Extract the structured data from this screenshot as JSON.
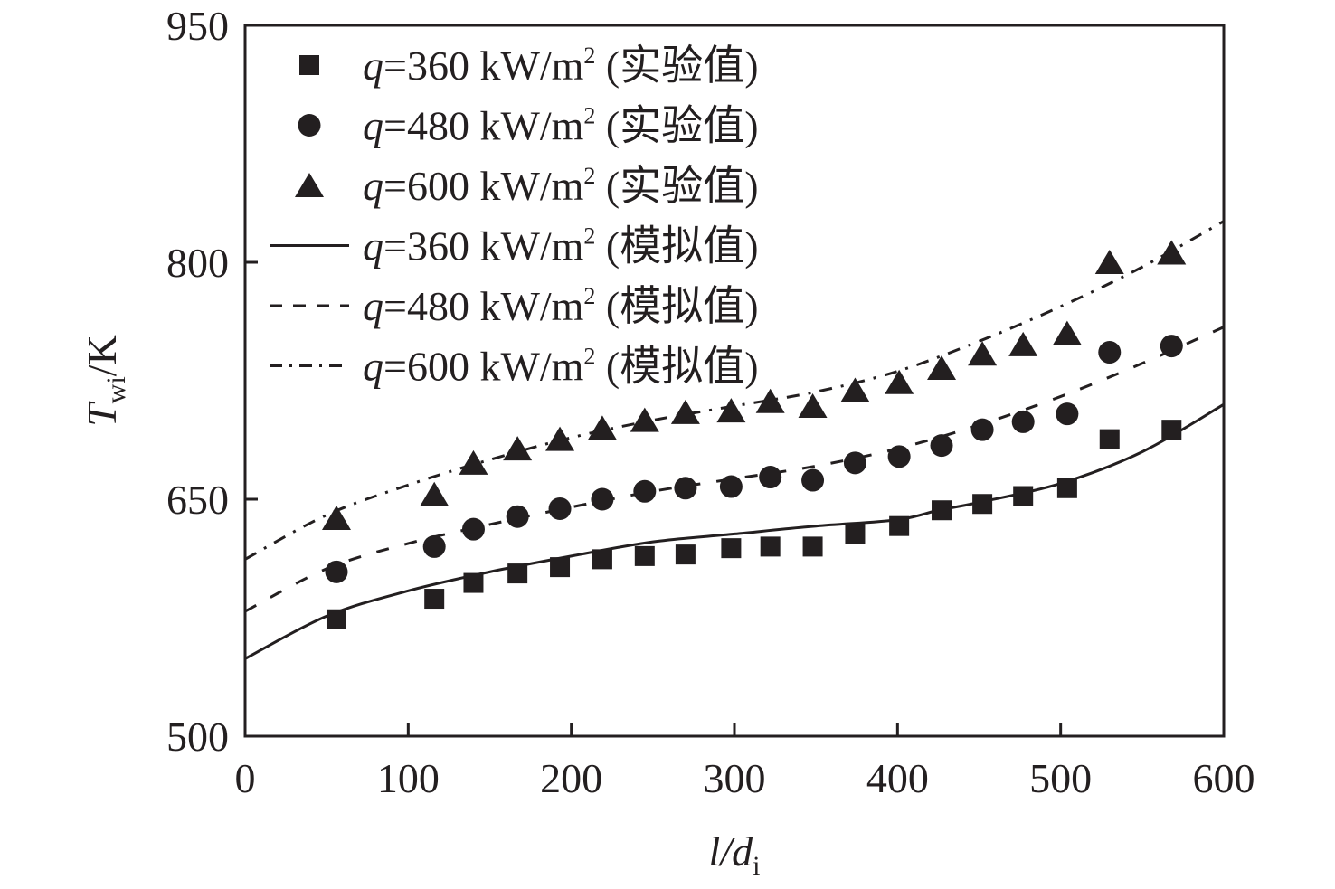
{
  "chart_data": {
    "type": "scatter",
    "title": "",
    "xlabel": {
      "main": "l/d",
      "subscript": "i"
    },
    "ylabel": {
      "main": "T",
      "subscript": "wi",
      "unit": "/K"
    },
    "xlim": [
      0,
      600
    ],
    "ylim": [
      500,
      950
    ],
    "xticks": [
      0,
      100,
      200,
      300,
      400,
      500,
      600
    ],
    "yticks": [
      500,
      650,
      800,
      950
    ],
    "grid": false,
    "legend_position": "top-left",
    "series": [
      {
        "name": "q=360 kW/m2 (实验值)",
        "legend": {
          "q": "q",
          "rest": "=360 kW/m",
          "sup": "2",
          "tail": " (实验值)"
        },
        "kind": "scatter",
        "marker": "square",
        "color": "#231f20",
        "x": [
          56,
          116,
          140,
          167,
          193,
          219,
          245,
          270,
          298,
          322,
          348,
          374,
          401,
          427,
          452,
          477,
          504,
          530,
          568
        ],
        "y": [
          574,
          587,
          597,
          603,
          607,
          612,
          614,
          615,
          619,
          620,
          620,
          628,
          633,
          643,
          647,
          652,
          657,
          688,
          694
        ]
      },
      {
        "name": "q=480 kW/m2 (实验值)",
        "legend": {
          "q": "q",
          "rest": "=480 kW/m",
          "sup": "2",
          "tail": " (实验值)"
        },
        "kind": "scatter",
        "marker": "circle",
        "color": "#231f20",
        "x": [
          56,
          116,
          140,
          167,
          193,
          219,
          245,
          270,
          298,
          322,
          348,
          374,
          401,
          427,
          452,
          477,
          504,
          530,
          568
        ],
        "y": [
          604,
          620,
          631,
          639,
          644,
          650,
          655,
          657,
          658,
          664,
          662,
          673,
          677,
          684,
          694,
          699,
          704,
          743,
          747
        ]
      },
      {
        "name": "q=600 kW/m2 (实验值)",
        "legend": {
          "q": "q",
          "rest": "=600 kW/m",
          "sup": "2",
          "tail": " (实验值)"
        },
        "kind": "scatter",
        "marker": "triangle",
        "color": "#231f20",
        "x": [
          56,
          116,
          140,
          167,
          193,
          219,
          245,
          270,
          298,
          322,
          348,
          374,
          401,
          427,
          452,
          477,
          504,
          530,
          568
        ],
        "y": [
          638,
          653,
          673,
          682,
          688,
          695,
          700,
          705,
          706,
          712,
          709,
          719,
          724,
          733,
          742,
          748,
          755,
          800,
          806
        ]
      },
      {
        "name": "q=360 kW/m2 (模拟值)",
        "legend": {
          "q": "q",
          "rest": "=360 kW/m",
          "sup": "2",
          "tail": " (模拟值)"
        },
        "kind": "line",
        "line_style": "solid",
        "color": "#231f20",
        "x": [
          0,
          50,
          100,
          150,
          200,
          250,
          300,
          350,
          400,
          425,
          450,
          500,
          550,
          600
        ],
        "y": [
          549,
          576,
          592,
          604,
          614,
          623,
          628,
          633,
          637,
          643,
          648,
          660,
          680,
          710
        ]
      },
      {
        "name": "q=480 kW/m2 (模拟值)",
        "legend": {
          "q": "q",
          "rest": "=480 kW/m",
          "sup": "2",
          "tail": " (模拟值)"
        },
        "kind": "line",
        "line_style": "dashed",
        "color": "#231f20",
        "x": [
          0,
          50,
          100,
          150,
          200,
          250,
          300,
          350,
          400,
          450,
          500,
          550,
          600
        ],
        "y": [
          579,
          606,
          622,
          634,
          645,
          655,
          663,
          671,
          682,
          697,
          715,
          736,
          759
        ]
      },
      {
        "name": "q=600 kW/m2 (模拟值)",
        "legend": {
          "q": "q",
          "rest": "=600 kW/m",
          "sup": "2",
          "tail": " (模拟值)"
        },
        "kind": "line",
        "line_style": "dash-dot",
        "color": "#231f20",
        "x": [
          0,
          50,
          100,
          150,
          200,
          250,
          300,
          350,
          400,
          450,
          500,
          550,
          600
        ],
        "y": [
          612,
          640,
          659,
          675,
          689,
          700,
          709,
          718,
          731,
          750,
          772,
          797,
          826
        ]
      }
    ]
  }
}
